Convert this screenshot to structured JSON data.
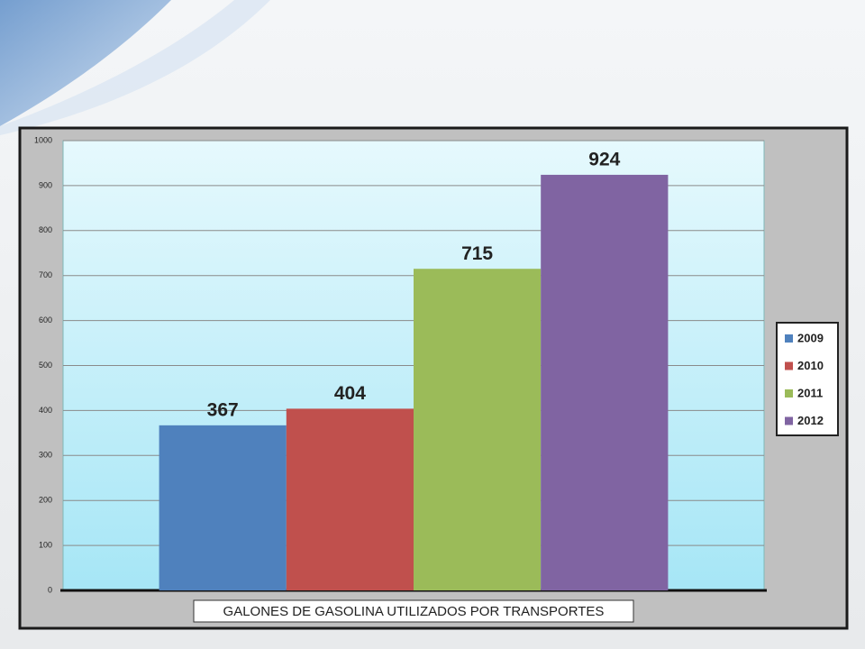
{
  "chart_data": {
    "type": "bar",
    "categories": [
      "GALONES DE GASOLINA UTILIZADOS POR TRANSPORTES"
    ],
    "series": [
      {
        "name": "2009",
        "color": "#4f81bd",
        "values": [
          367
        ]
      },
      {
        "name": "2010",
        "color": "#c0504d",
        "values": [
          404
        ]
      },
      {
        "name": "2011",
        "color": "#9bbb59",
        "values": [
          715
        ]
      },
      {
        "name": "2012",
        "color": "#8064a2",
        "values": [
          924
        ]
      }
    ],
    "ylim": [
      0,
      1000
    ],
    "yticks": [
      0,
      100,
      200,
      300,
      400,
      500,
      600,
      700,
      800,
      900,
      1000
    ],
    "grid": true,
    "legend": "right"
  }
}
